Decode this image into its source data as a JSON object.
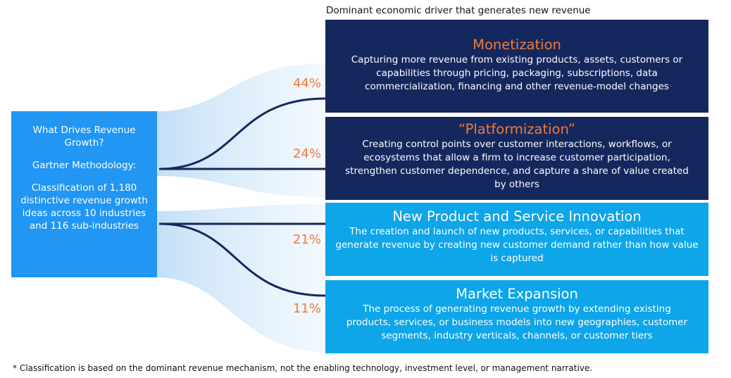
{
  "header": "Dominant economic driver that generates new revenue",
  "left_box": {
    "title": "What Drives Revenue Growth?",
    "methodology": "Gartner Methodology:",
    "classification": "Classification of 1,180 distinctive revenue growth ideas across 10 industries and 116 sub-industries"
  },
  "drivers": [
    {
      "percent": "44%",
      "title": "Monetization",
      "description": "Capturing more revenue from existing products, assets, customers or capabilities through pricing, packaging, subscriptions, data commercialization, financing and other revenue-model changes"
    },
    {
      "percent": "24%",
      "title": "“Platformization”",
      "description": "Creating control points over customer interactions, workflows, or ecosystems that allow a firm to increase customer participation, strengthen customer dependence, and capture a share of value created by others"
    },
    {
      "percent": "21%",
      "title": "New Product and Service Innovation",
      "description": "The creation and launch of new products, services, or capabilities that generate revenue by creating new customer demand rather than how value is captured"
    },
    {
      "percent": "11%",
      "title": "Market Expansion",
      "description": "The process of generating revenue growth by extending existing products, services, or business models into new geographies, customer segments, industry verticals, channels, or customer tiers"
    }
  ],
  "colors": {
    "dark_card": "#14285e",
    "light_card": "#0ea5e9",
    "left_box": "#2196f3",
    "accent_orange": "#ef7a3b",
    "flow_line": "#14285e"
  },
  "footnote": "* Classification is based on the dominant revenue mechanism, not the enabling technology, investment level, or management narrative."
}
